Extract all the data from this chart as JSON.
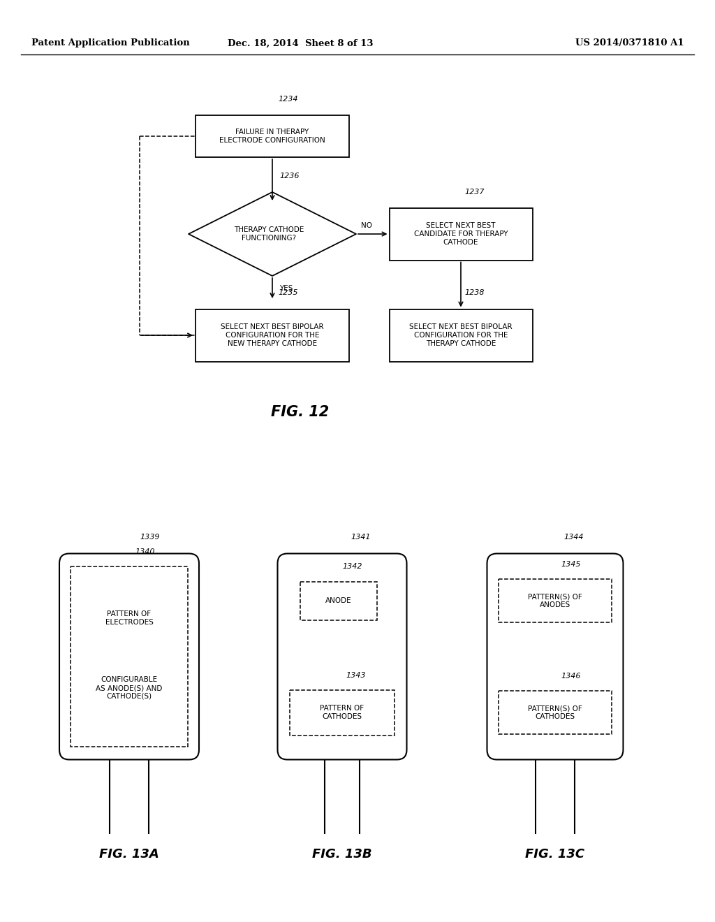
{
  "bg_color": "#ffffff",
  "header_left": "Patent Application Publication",
  "header_mid": "Dec. 18, 2014  Sheet 8 of 13",
  "header_right": "US 2014/0371810 A1"
}
